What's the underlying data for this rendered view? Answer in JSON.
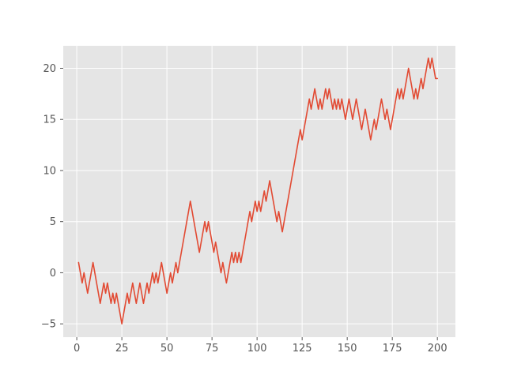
{
  "chart_data": {
    "type": "line",
    "title": "",
    "xlabel": "",
    "ylabel": "",
    "xlim": [
      -7.5,
      210
    ],
    "ylim": [
      -6.3,
      22.2
    ],
    "xticks": [
      0,
      25,
      50,
      75,
      100,
      125,
      150,
      175,
      200
    ],
    "yticks": [
      -5,
      0,
      5,
      10,
      15,
      20
    ],
    "grid": true,
    "legend": "none",
    "colors": {
      "background": "#e5e5e5",
      "grid": "#ffffff",
      "line": "#e24a33",
      "tick_text": "#555555"
    },
    "series": [
      {
        "color": "#e24a33",
        "x": [
          1,
          2,
          3,
          4,
          5,
          6,
          7,
          8,
          9,
          10,
          11,
          12,
          13,
          14,
          15,
          16,
          17,
          18,
          19,
          20,
          21,
          22,
          23,
          24,
          25,
          26,
          27,
          28,
          29,
          30,
          31,
          32,
          33,
          34,
          35,
          36,
          37,
          38,
          39,
          40,
          41,
          42,
          43,
          44,
          45,
          46,
          47,
          48,
          49,
          50,
          51,
          52,
          53,
          54,
          55,
          56,
          57,
          58,
          59,
          60,
          61,
          62,
          63,
          64,
          65,
          66,
          67,
          68,
          69,
          70,
          71,
          72,
          73,
          74,
          75,
          76,
          77,
          78,
          79,
          80,
          81,
          82,
          83,
          84,
          85,
          86,
          87,
          88,
          89,
          90,
          91,
          92,
          93,
          94,
          95,
          96,
          97,
          98,
          99,
          100,
          101,
          102,
          103,
          104,
          105,
          106,
          107,
          108,
          109,
          110,
          111,
          112,
          113,
          114,
          115,
          116,
          117,
          118,
          119,
          120,
          121,
          122,
          123,
          124,
          125,
          126,
          127,
          128,
          129,
          130,
          131,
          132,
          133,
          134,
          135,
          136,
          137,
          138,
          139,
          140,
          141,
          142,
          143,
          144,
          145,
          146,
          147,
          148,
          149,
          150,
          151,
          152,
          153,
          154,
          155,
          156,
          157,
          158,
          159,
          160,
          161,
          162,
          163,
          164,
          165,
          166,
          167,
          168,
          169,
          170,
          171,
          172,
          173,
          174,
          175,
          176,
          177,
          178,
          179,
          180,
          181,
          182,
          183,
          184,
          185,
          186,
          187,
          188,
          189,
          190,
          191,
          192,
          193,
          194,
          195,
          196,
          197,
          198,
          199,
          200
        ],
        "values": [
          1,
          0,
          -1,
          0,
          -1,
          -2,
          -1,
          0,
          1,
          0,
          -1,
          -2,
          -3,
          -2,
          -1,
          -2,
          -1,
          -2,
          -3,
          -2,
          -3,
          -2,
          -3,
          -4,
          -5,
          -4,
          -3,
          -2,
          -3,
          -2,
          -1,
          -2,
          -3,
          -2,
          -1,
          -2,
          -3,
          -2,
          -1,
          -2,
          -1,
          0,
          -1,
          0,
          -1,
          0,
          1,
          0,
          -1,
          -2,
          -1,
          0,
          -1,
          0,
          1,
          0,
          1,
          2,
          3,
          4,
          5,
          6,
          7,
          6,
          5,
          4,
          3,
          2,
          3,
          4,
          5,
          4,
          5,
          4,
          3,
          2,
          3,
          2,
          1,
          0,
          1,
          0,
          -1,
          0,
          1,
          2,
          1,
          2,
          1,
          2,
          1,
          2,
          3,
          4,
          5,
          6,
          5,
          6,
          7,
          6,
          7,
          6,
          7,
          8,
          7,
          8,
          9,
          8,
          7,
          6,
          5,
          6,
          5,
          4,
          5,
          6,
          7,
          8,
          9,
          10,
          11,
          12,
          13,
          14,
          13,
          14,
          15,
          16,
          17,
          16,
          17,
          18,
          17,
          16,
          17,
          16,
          17,
          18,
          17,
          18,
          17,
          16,
          17,
          16,
          17,
          16,
          17,
          16,
          15,
          16,
          17,
          16,
          15,
          16,
          17,
          16,
          15,
          14,
          15,
          16,
          15,
          14,
          13,
          14,
          15,
          14,
          15,
          16,
          17,
          16,
          15,
          16,
          15,
          14,
          15,
          16,
          17,
          18,
          17,
          18,
          17,
          18,
          19,
          20,
          19,
          18,
          17,
          18,
          17,
          18,
          19,
          18,
          19,
          20,
          21,
          20,
          21,
          20,
          19,
          19
        ]
      }
    ]
  }
}
